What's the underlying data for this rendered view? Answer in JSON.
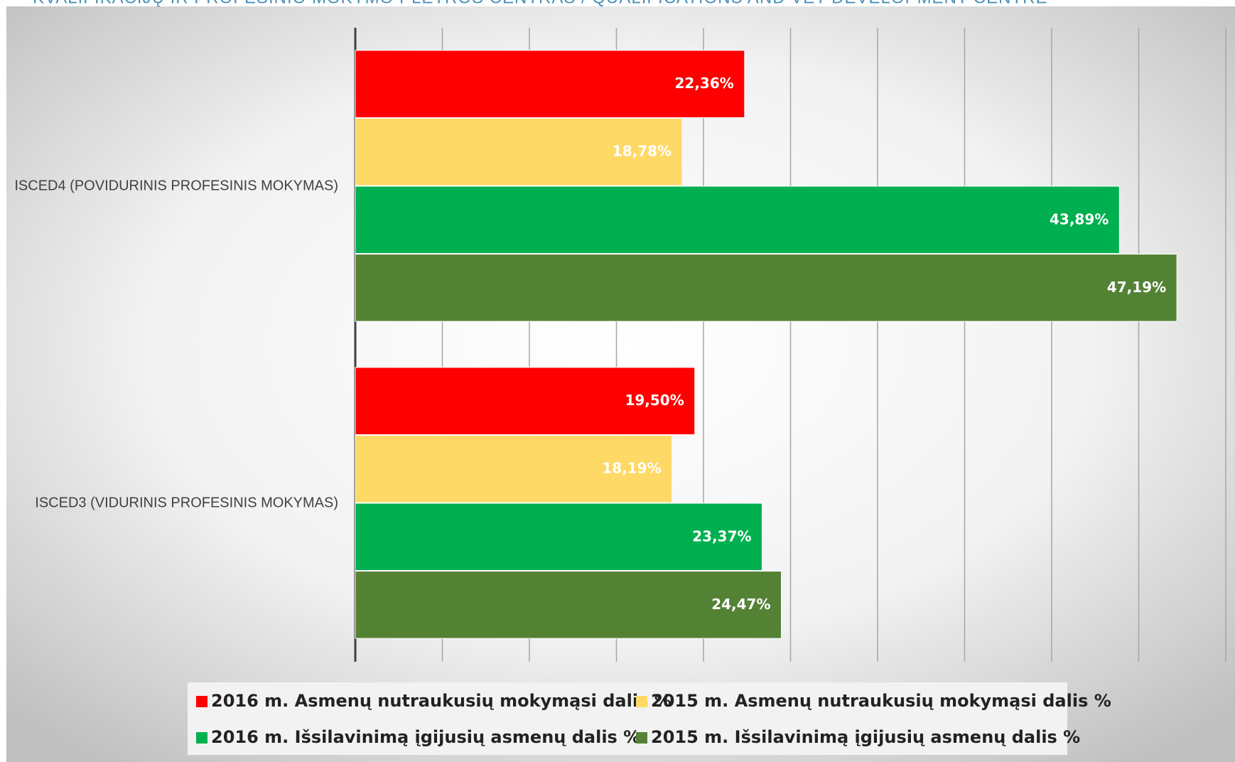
{
  "chart_data": {
    "type": "hbar",
    "subtitle": "KVALIFIKACIJŲ IR PROFESINIO MOKYMO PLĖTROS CENTRAS / QUALIFICATIONS AND VET DEVELOPMENT CENTRE",
    "categories": [
      "ISCED4 (POVIDURINIS PROFESINIS MOKYMAS)",
      "ISCED3 (VIDURINIS PROFESINIS MOKYMAS)"
    ],
    "series": [
      {
        "name": "2016 m.  Asmenų nutraukusių mokymąsi dalis %",
        "color": "#ff0000",
        "values": [
          22.36,
          19.5
        ],
        "value_labels": [
          "22,36%",
          "19,50%"
        ]
      },
      {
        "name": "2015 m.  Asmenų nutraukusių mokymąsi dalis %",
        "color": "#ffd966",
        "values": [
          18.78,
          18.19
        ],
        "value_labels": [
          "18,78%",
          "18,19%"
        ]
      },
      {
        "name": "2016 m.  Išsilavinimą įgijusių asmenų dalis %",
        "color": "#00b050",
        "values": [
          43.89,
          23.37
        ],
        "value_labels": [
          "43,89%",
          "23,37%"
        ]
      },
      {
        "name": "2015 m.  Išsilavinimą įgijusių asmenų dalis %",
        "color": "#548235",
        "values": [
          47.19,
          24.47
        ],
        "value_labels": [
          "47,19%",
          "24,47%"
        ]
      }
    ],
    "xlim": [
      0,
      50
    ],
    "xticks": [
      0,
      5,
      10,
      15,
      20,
      25,
      30,
      35,
      40,
      45,
      50
    ],
    "grid": true,
    "legend": "bottom"
  }
}
